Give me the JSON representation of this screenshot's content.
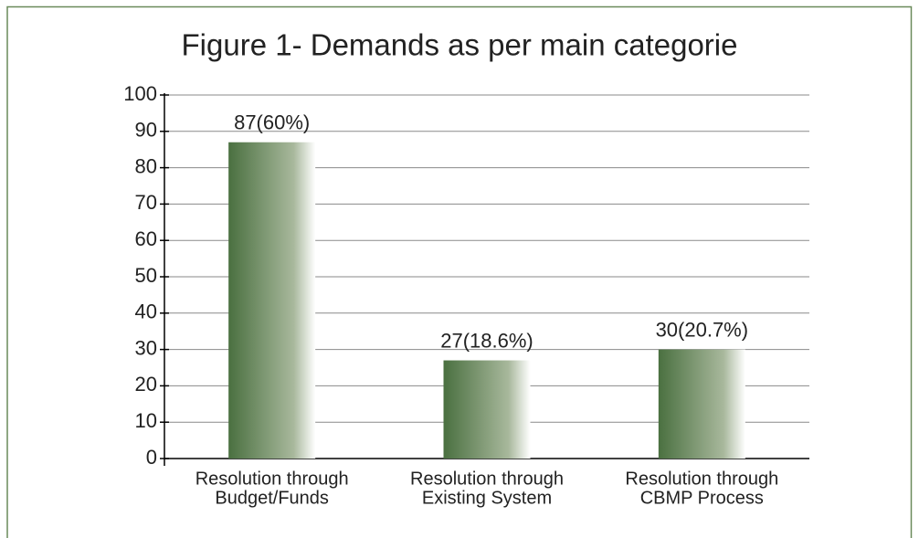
{
  "chart_data": {
    "type": "bar",
    "title": "Figure 1- Demands as per main categorie",
    "categories": [
      [
        "Resolution through",
        "Budget/Funds"
      ],
      [
        "Resolution through",
        "Existing System"
      ],
      [
        "Resolution through",
        "CBMP Process"
      ]
    ],
    "values": [
      87,
      27,
      30
    ],
    "value_labels": [
      "87(60%)",
      "27(18.6%)",
      "30(20.7%)"
    ],
    "color": "#4a7040",
    "ylim": [
      0,
      100
    ],
    "yticks": [
      0,
      10,
      20,
      30,
      40,
      50,
      60,
      70,
      80,
      90,
      100
    ],
    "grid": true
  }
}
